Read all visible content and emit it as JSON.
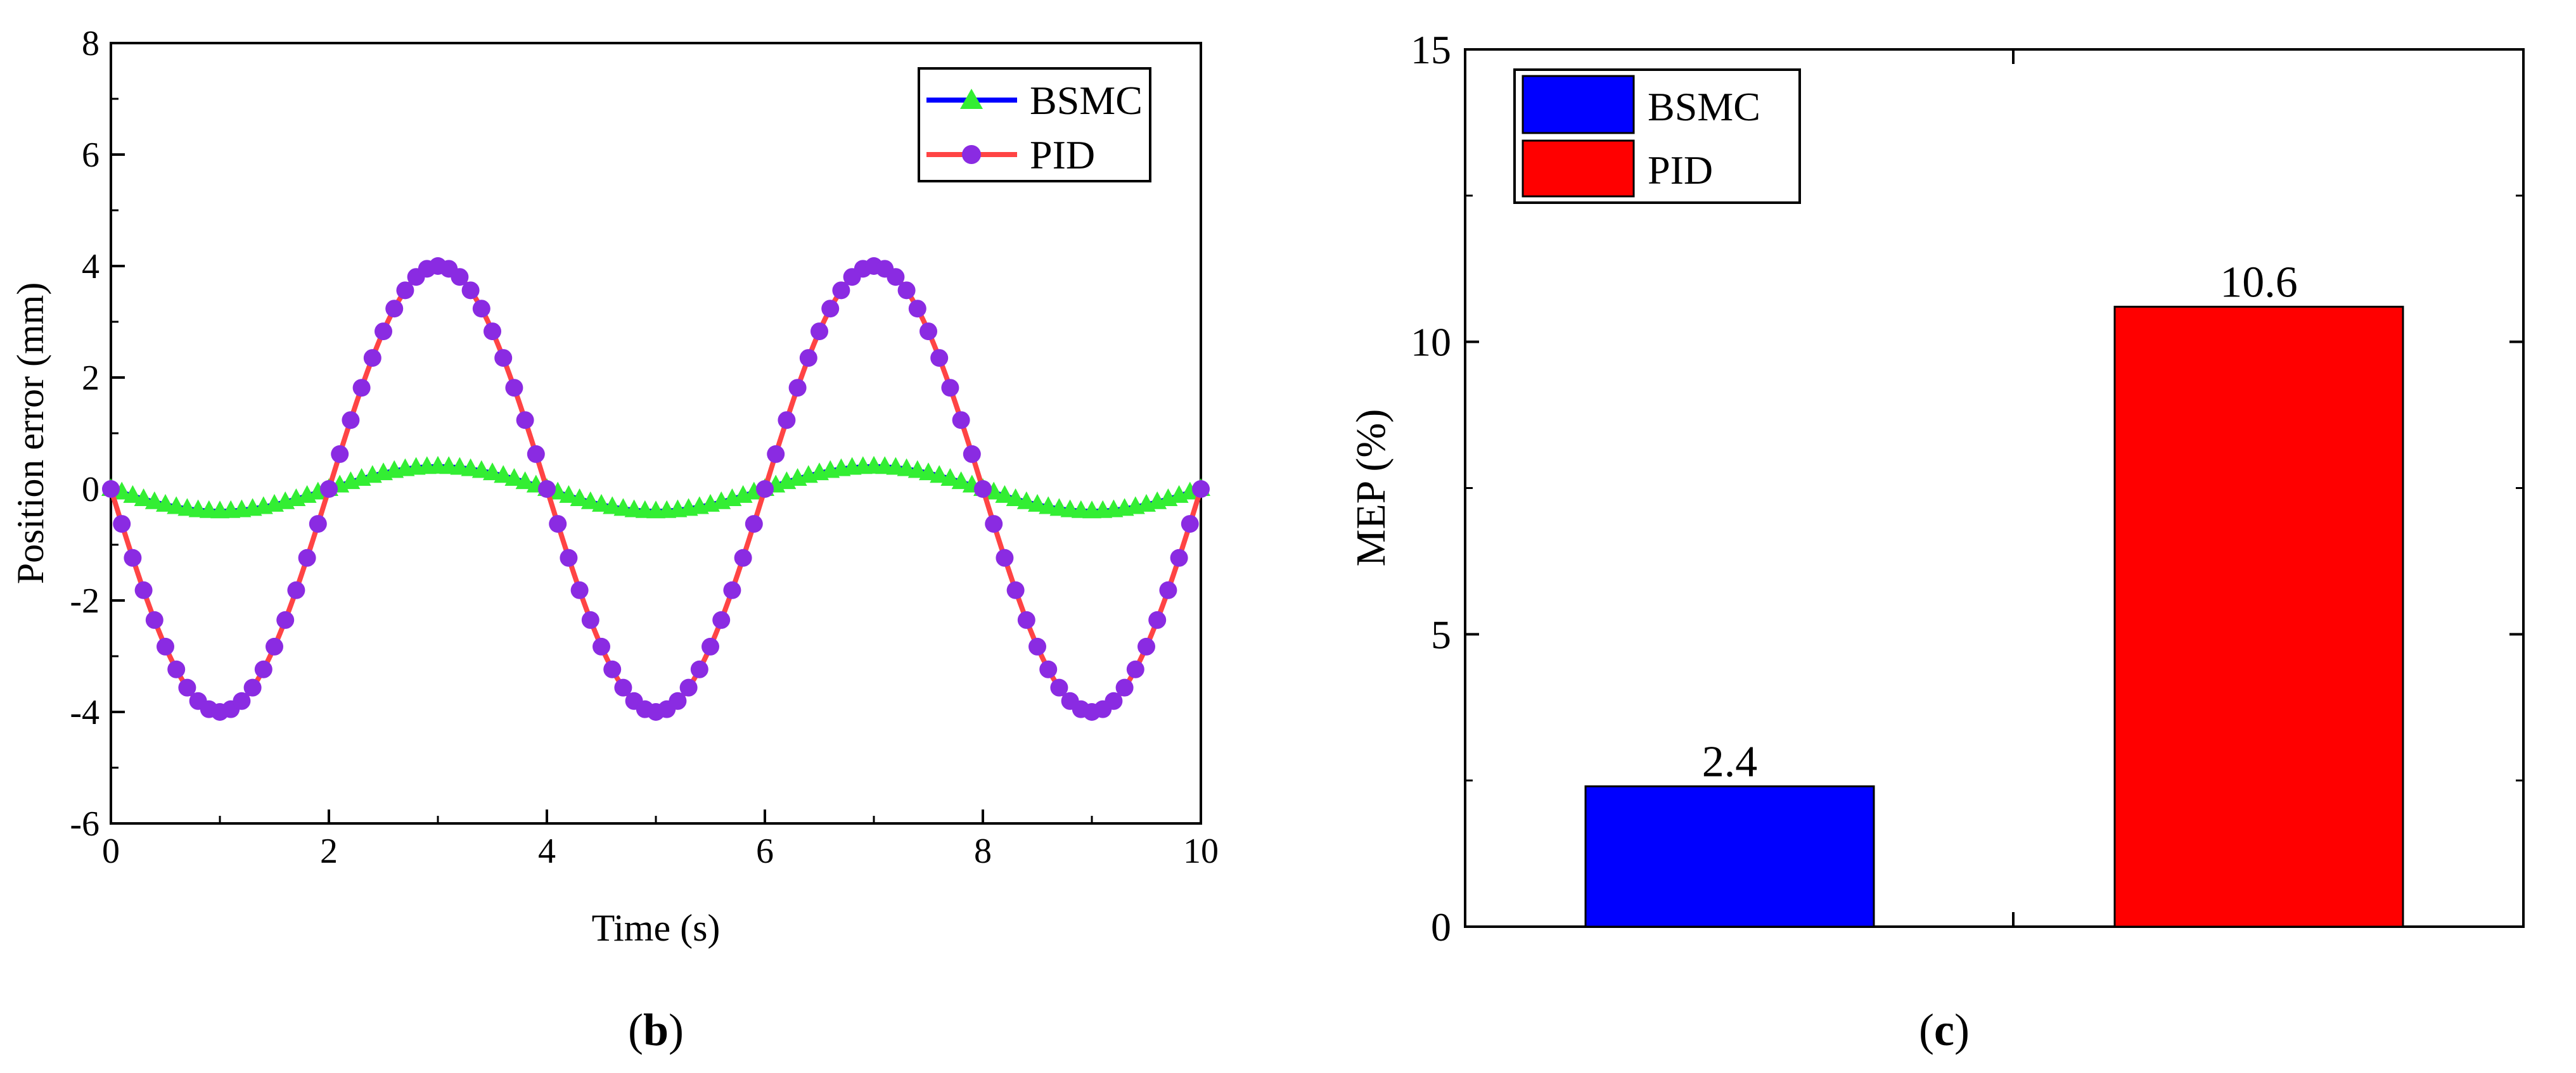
{
  "chart_data": [
    {
      "type": "line",
      "panel_label": {
        "open": "(",
        "letter": "b",
        "close": ")"
      },
      "title": "",
      "xlabel": "Time (s)",
      "ylabel": "Position error (mm)",
      "xlim": [
        0,
        10
      ],
      "ylim": [
        -6,
        8
      ],
      "x_ticks": [
        "0",
        "2",
        "4",
        "6",
        "8",
        "10"
      ],
      "y_ticks": [
        "-6",
        "-4",
        "-2",
        "0",
        "2",
        "4",
        "6",
        "8"
      ],
      "legend_position": "top-right",
      "series": [
        {
          "name": "BSMC",
          "line_color": "#0000ff",
          "marker_color": "#33ee33",
          "marker": "triangle",
          "description_formula": "-0.4*sin(pi*t/2)",
          "amplitude": 0.4
        },
        {
          "name": "PID",
          "line_color": "#ff4444",
          "marker_color": "#8a2be2",
          "marker": "circle",
          "description_formula": "-4*sin(pi*t/2)",
          "amplitude": 4
        }
      ]
    },
    {
      "type": "bar",
      "panel_label": {
        "open": "(",
        "letter": "c",
        "close": ")"
      },
      "title": "",
      "xlabel": "",
      "ylabel": "MEP (%)",
      "ylim": [
        0,
        15
      ],
      "y_ticks": [
        "0",
        "5",
        "10",
        "15"
      ],
      "legend_position": "top-left",
      "categories": [
        "BSMC",
        "PID"
      ],
      "values": [
        2.4,
        10.6
      ],
      "value_labels": [
        "2.4",
        "10.6"
      ],
      "colors": [
        "#0000ff",
        "#ff0000"
      ]
    }
  ]
}
